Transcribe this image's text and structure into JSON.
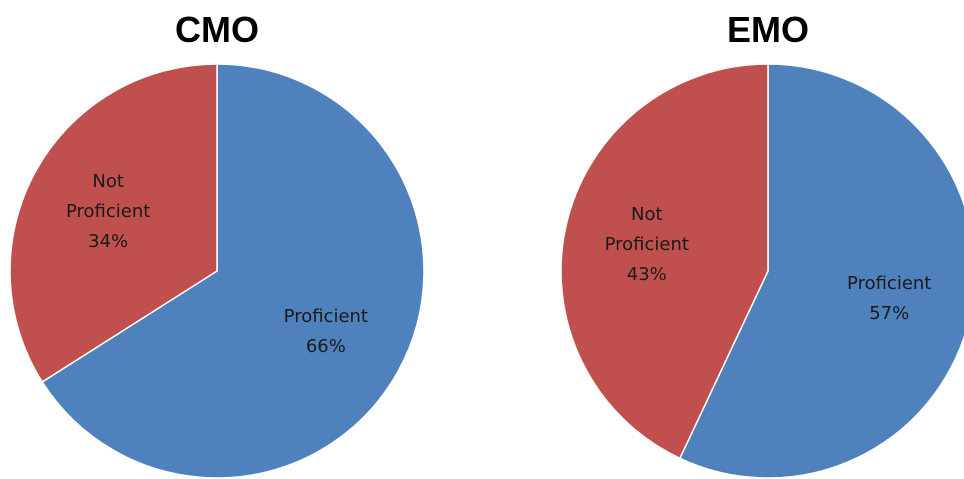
{
  "chart_data": [
    {
      "type": "pie",
      "title": "CMO",
      "slices": [
        {
          "label": [
            "Proficient",
            "66%"
          ],
          "value": 66,
          "color": "#4F81BD"
        },
        {
          "label": [
            "Not",
            "Proficient",
            "34%"
          ],
          "value": 34,
          "color": "#C0504D"
        }
      ]
    },
    {
      "type": "pie",
      "title": "EMO",
      "slices": [
        {
          "label": [
            "Proficient",
            "57%"
          ],
          "value": 57,
          "color": "#4F81BD"
        },
        {
          "label": [
            "Not",
            "Proficient",
            "43%"
          ],
          "value": 43,
          "color": "#C0504D"
        }
      ]
    }
  ]
}
